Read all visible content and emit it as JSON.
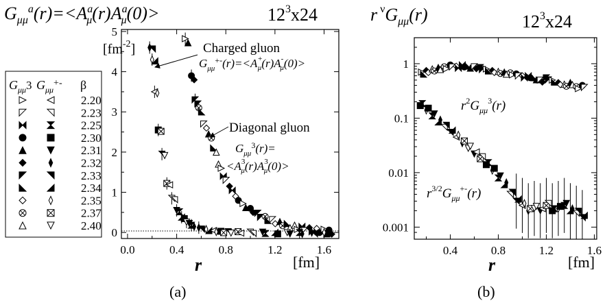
{
  "figure": {
    "panel_a_caption": "(a)",
    "panel_b_caption": "(b)"
  },
  "chart_data": [
    {
      "panel": "a",
      "type": "scatter",
      "title": "G_μμ^a(r)=<A_μ^a(r)A_μ^a(0)>",
      "subtitle": "12^3x24",
      "xlabel": "r",
      "xunit": "[fm]",
      "yunit": "[fm^-2]",
      "xlim": [
        -0.05,
        1.72
      ],
      "ylim": [
        -0.15,
        5.05
      ],
      "xticks": [
        "0.0",
        "0.4",
        "0.8",
        "1.2",
        "1.6"
      ],
      "yticks": [
        "0",
        "1",
        "2",
        "3",
        "4",
        "5"
      ],
      "legend": {
        "position": "left",
        "header": [
          "G_μμ^3",
          "G_μμ^+-",
          "β"
        ],
        "rows": [
          {
            "beta": "2.20",
            "diag": "tri-right-open",
            "charged": "tri-left-open"
          },
          {
            "beta": "2.23",
            "diag": "tri-down-left-open",
            "charged": "tri-down-right-open"
          },
          {
            "beta": "2.25",
            "diag": "bowtie-h",
            "charged": "bowtie-v"
          },
          {
            "beta": "2.30",
            "diag": "circle-filled",
            "charged": "square-filled"
          },
          {
            "beta": "2.31",
            "diag": "tri-up-filled",
            "charged": "tri-down-filled"
          },
          {
            "beta": "2.32",
            "diag": "diamond-filled",
            "charged": "diamond-thin-filled"
          },
          {
            "beta": "2.33",
            "diag": "tri-tl-filled",
            "charged": "tri-tr-filled"
          },
          {
            "beta": "2.34",
            "diag": "tri-bl-filled",
            "charged": "tri-br-filled"
          },
          {
            "beta": "2.35",
            "diag": "diamond-open",
            "charged": "diamond-thin-open"
          },
          {
            "beta": "2.37",
            "diag": "circle-x",
            "charged": "square-x"
          },
          {
            "beta": "2.40",
            "diag": "tri-up-open",
            "charged": "tri-down-open"
          }
        ]
      },
      "annotations": [
        {
          "text": "Charged gluon",
          "formula": "G_μμ^+-(r)=<A_μ^+(r)A_μ^-(0)>"
        },
        {
          "text": "Diagonal gluon",
          "formula_1": "G_μμ^3(r)=",
          "formula_2": "<A_μ^3(r)A_μ^3(0)>"
        }
      ],
      "series": [
        {
          "group": "diagonal",
          "x": [
            0.47,
            0.52,
            0.55,
            0.58,
            0.62,
            0.66,
            0.7,
            0.74,
            0.78,
            0.83,
            0.88,
            0.94,
            1.0,
            1.06,
            1.12,
            1.18,
            1.24,
            1.3,
            1.36,
            1.42,
            1.48,
            1.54,
            1.6,
            1.64
          ],
          "y": [
            4.82,
            3.9,
            3.3,
            3.1,
            2.7,
            2.45,
            2.1,
            1.7,
            1.4,
            1.15,
            0.9,
            0.72,
            0.6,
            0.48,
            0.4,
            0.32,
            0.27,
            0.22,
            0.18,
            0.15,
            0.12,
            0.1,
            0.08,
            0.06
          ]
        },
        {
          "group": "charged",
          "x": [
            0.18,
            0.2,
            0.22,
            0.25,
            0.28,
            0.32,
            0.36,
            0.4,
            0.44,
            0.48,
            0.52,
            0.58,
            0.64,
            0.7,
            0.76,
            0.82,
            0.9,
            1.0,
            1.1,
            1.2,
            1.3,
            1.4,
            1.5,
            1.6
          ],
          "y": [
            4.6,
            4.3,
            3.5,
            2.55,
            1.95,
            1.22,
            0.85,
            0.55,
            0.38,
            0.26,
            0.18,
            0.12,
            0.08,
            0.05,
            0.03,
            0.02,
            0.02,
            0.01,
            0.01,
            0.0,
            0.0,
            0.0,
            0.0,
            0.0
          ]
        }
      ]
    },
    {
      "panel": "b",
      "type": "scatter",
      "title": "r^ν G_μμ(r)",
      "subtitle": "12^3x24",
      "xlabel": "r",
      "xunit": "[fm]",
      "yscale": "log",
      "xlim": [
        0.1,
        1.62
      ],
      "ylim": [
        0.0006,
        3.0
      ],
      "xticks": [
        "0.4",
        "0.8",
        "1.2",
        "1.6"
      ],
      "yticks": [
        "0.001",
        "0.01",
        "0.1",
        "1"
      ],
      "annotations": [
        {
          "text": "r^2 G_μμ^3(r)"
        },
        {
          "text": "r^3/2 G_μμ^+-(r)"
        }
      ],
      "series": [
        {
          "group": "diagonal r^2",
          "x": [
            0.16,
            0.2,
            0.25,
            0.3,
            0.35,
            0.4,
            0.45,
            0.5,
            0.55,
            0.6,
            0.65,
            0.7,
            0.75,
            0.8,
            0.85,
            0.9,
            0.95,
            1.0,
            1.05,
            1.1,
            1.15,
            1.2,
            1.25,
            1.3,
            1.35,
            1.4,
            1.45,
            1.5
          ],
          "y": [
            0.7,
            0.75,
            0.8,
            0.85,
            0.88,
            0.95,
            0.9,
            0.95,
            0.9,
            0.88,
            0.85,
            0.8,
            0.75,
            0.72,
            0.7,
            0.68,
            0.65,
            0.6,
            0.6,
            0.55,
            0.5,
            0.55,
            0.5,
            0.45,
            0.42,
            0.45,
            0.38,
            0.4
          ]
        },
        {
          "group": "charged r^3/2",
          "x": [
            0.15,
            0.2,
            0.25,
            0.3,
            0.35,
            0.4,
            0.45,
            0.5,
            0.55,
            0.6,
            0.65,
            0.7,
            0.75,
            0.8,
            0.85,
            0.9,
            0.95,
            1.0,
            1.05,
            1.1,
            1.15,
            1.2,
            1.25,
            1.3,
            1.35,
            1.4,
            1.45,
            1.5
          ],
          "y": [
            0.17,
            0.14,
            0.11,
            0.085,
            0.068,
            0.055,
            0.045,
            0.035,
            0.028,
            0.022,
            0.018,
            0.014,
            0.011,
            0.008,
            0.006,
            0.004,
            0.003,
            0.0025,
            0.002,
            0.0022,
            0.002,
            0.0025,
            0.002,
            0.0022,
            0.0025,
            0.002,
            0.0018,
            0.0015
          ]
        }
      ]
    }
  ]
}
